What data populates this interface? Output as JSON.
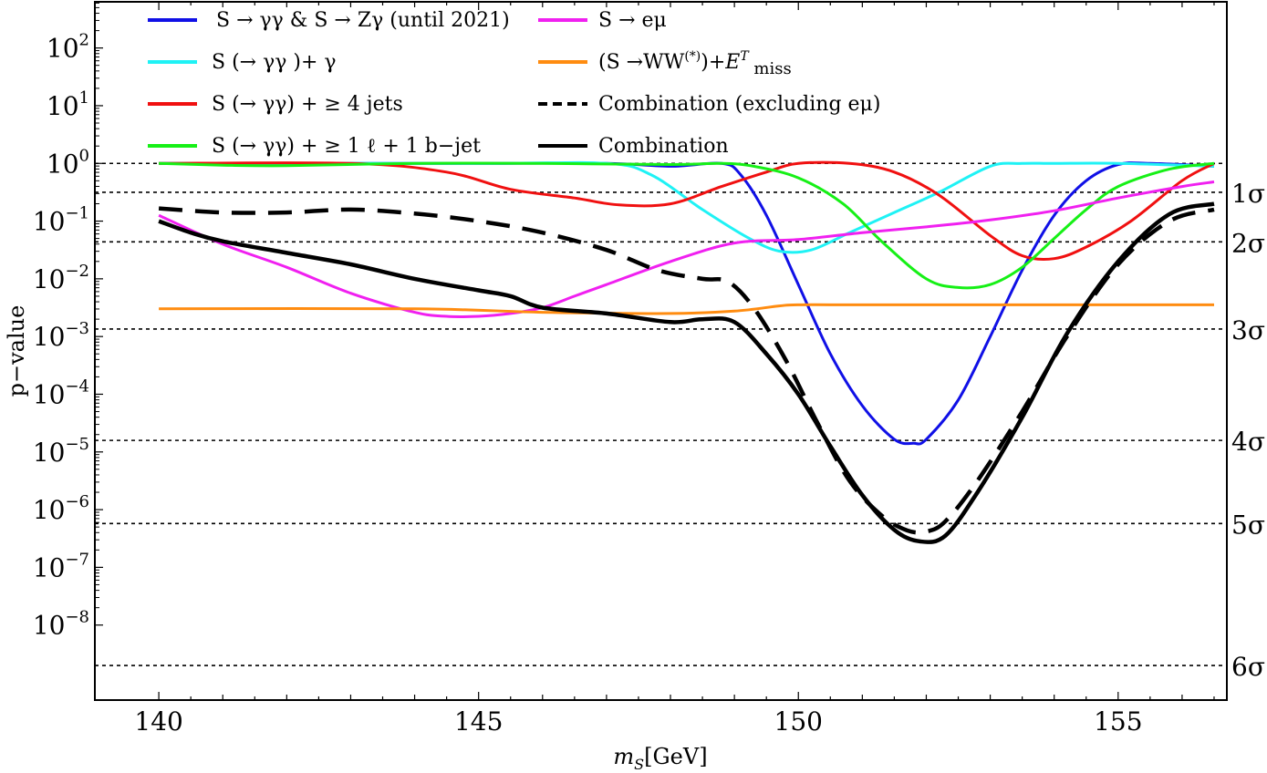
{
  "chart_data": {
    "type": "line",
    "xlabel": "mS[GeV]",
    "xlabel_main": "m",
    "xlabel_sub": "S",
    "xlabel_rest": "[GeV]",
    "ylabel": "p−value",
    "xlim": [
      139,
      156.7
    ],
    "x_ticks": [
      140,
      145,
      150,
      155
    ],
    "x_tick_labels": [
      "140",
      "145",
      "150",
      "155"
    ],
    "ylim_log10": [
      -9.3,
      2.8
    ],
    "y_tick_exponents": [
      2,
      1,
      0,
      -1,
      -2,
      -3,
      -4,
      -5,
      -6,
      -7,
      -8
    ],
    "y_tick_labels": [
      {
        "base": "10",
        "exp": "2"
      },
      {
        "base": "10",
        "exp": "1"
      },
      {
        "base": "10",
        "exp": "0"
      },
      {
        "base": "10",
        "exp": "−1"
      },
      {
        "base": "10",
        "exp": "−2"
      },
      {
        "base": "10",
        "exp": "−3"
      },
      {
        "base": "10",
        "exp": "−4"
      },
      {
        "base": "10",
        "exp": "−5"
      },
      {
        "base": "10",
        "exp": "−6"
      },
      {
        "base": "10",
        "exp": "−7"
      },
      {
        "base": "10",
        "exp": "−8"
      }
    ],
    "significance_lines": [
      {
        "label": "",
        "log10p": 0
      },
      {
        "label": "1σ",
        "log10p": -0.5
      },
      {
        "label": "2σ",
        "log10p": -1.36
      },
      {
        "label": "3σ",
        "log10p": -2.87
      },
      {
        "label": "4σ",
        "log10p": -4.8
      },
      {
        "label": "5σ",
        "log10p": -6.24
      },
      {
        "label": "6σ",
        "log10p": -8.7
      }
    ],
    "legend": [
      {
        "key": "blue",
        "label": "S → γγ & S → Zγ (until 2021)",
        "color": "#1010e6",
        "dash": "solid"
      },
      {
        "key": "cyan",
        "label": "S (→ γγ )+ γ",
        "color": "#1ff2f5",
        "dash": "solid"
      },
      {
        "key": "red",
        "label": "S (→ γγ) + ≥ 4 jets",
        "color": "#f01010",
        "dash": "solid"
      },
      {
        "key": "green",
        "label": "S (→ γγ) + ≥ 1 ℓ + 1 b−jet",
        "color": "#16f016",
        "dash": "solid"
      },
      {
        "key": "magenta",
        "label": "S → eμ",
        "color": "#f020f0",
        "dash": "solid"
      },
      {
        "key": "orange",
        "label": "(S →WW(*))+ETmiss",
        "color": "#ff8c10",
        "dash": "solid"
      },
      {
        "key": "black_dashed",
        "label": "Combination  (excluding eμ)",
        "color": "#000000",
        "dash": "dashed"
      },
      {
        "key": "black",
        "label": "Combination",
        "color": "#000000",
        "dash": "solid"
      }
    ],
    "series": [
      {
        "name": "S → γγ & S → Zγ (until 2021)",
        "color": "#1010e6",
        "width": 3,
        "dash": "",
        "x": [
          140,
          143,
          145,
          147,
          148,
          148.8,
          149.1,
          149.5,
          150,
          150.5,
          151,
          151.5,
          151.8,
          152,
          152.5,
          153,
          153.5,
          154,
          154.5,
          155,
          155.5,
          156.5
        ],
        "log10p": [
          0,
          0,
          0,
          0,
          -0.05,
          0,
          -0.2,
          -0.9,
          -2.1,
          -3.3,
          -4.2,
          -4.78,
          -4.85,
          -4.78,
          -4.1,
          -3.0,
          -1.85,
          -0.9,
          -0.3,
          -0.02,
          0,
          -0.05
        ]
      },
      {
        "name": "S (→ γγ )+ γ",
        "color": "#1ff2f5",
        "width": 3,
        "dash": "",
        "x": [
          140,
          145,
          147,
          147.7,
          148.5,
          149.2,
          149.7,
          150.2,
          150.8,
          151.5,
          152.2,
          153,
          153.5,
          154,
          155,
          156.5
        ],
        "log10p": [
          0,
          0,
          0,
          -0.2,
          -0.8,
          -1.28,
          -1.52,
          -1.5,
          -1.2,
          -0.85,
          -0.5,
          -0.05,
          0,
          0,
          0,
          -0.05
        ]
      },
      {
        "name": "S (→ γγ) + ≥ 4 jets",
        "color": "#f01010",
        "width": 3,
        "dash": "",
        "x": [
          140,
          143,
          144.5,
          145.5,
          146.5,
          147.2,
          148,
          148.8,
          149.5,
          150,
          150.8,
          151.5,
          152.2,
          153,
          153.5,
          154,
          154.5,
          155.2,
          156,
          156.5
        ],
        "log10p": [
          0,
          0,
          -0.15,
          -0.45,
          -0.6,
          -0.72,
          -0.7,
          -0.4,
          -0.15,
          0,
          0,
          -0.15,
          -0.55,
          -1.25,
          -1.6,
          -1.65,
          -1.45,
          -1.0,
          -0.3,
          0
        ]
      },
      {
        "name": "S (→ γγ) + ≥ 1 ℓ + 1 b−jet",
        "color": "#16f016",
        "width": 3,
        "dash": "",
        "x": [
          140,
          141,
          142,
          144,
          146,
          148,
          148.8,
          149.3,
          150,
          150.7,
          151.3,
          152,
          152.5,
          153,
          153.5,
          154,
          154.5,
          155,
          155.8,
          156.5
        ],
        "log10p": [
          0,
          -0.03,
          -0.04,
          0,
          0,
          -0.02,
          0,
          -0.05,
          -0.25,
          -0.7,
          -1.35,
          -2.0,
          -2.15,
          -2.1,
          -1.8,
          -1.3,
          -0.8,
          -0.4,
          -0.1,
          0
        ]
      },
      {
        "name": "S → eμ",
        "color": "#f020f0",
        "width": 3,
        "dash": "",
        "x": [
          140,
          141,
          142,
          143,
          144,
          144.5,
          145,
          145.5,
          146,
          146.5,
          147,
          148,
          149,
          150,
          151,
          152,
          153,
          154,
          155,
          156,
          156.5
        ],
        "log10p": [
          -0.9,
          -1.4,
          -1.8,
          -2.25,
          -2.58,
          -2.65,
          -2.65,
          -2.6,
          -2.5,
          -2.3,
          -2.1,
          -1.7,
          -1.38,
          -1.32,
          -1.2,
          -1.1,
          -0.98,
          -0.82,
          -0.6,
          -0.4,
          -0.32
        ]
      },
      {
        "name": "(S →WW(*))+ETmiss",
        "color": "#ff8c10",
        "width": 3,
        "dash": "",
        "x": [
          140,
          144,
          146,
          148,
          149,
          149.7,
          150,
          151,
          153,
          155,
          156.5
        ],
        "log10p": [
          -2.52,
          -2.52,
          -2.58,
          -2.6,
          -2.56,
          -2.47,
          -2.45,
          -2.45,
          -2.45,
          -2.45,
          -2.45
        ]
      },
      {
        "name": "Combination  (excluding eμ)",
        "color": "#000000",
        "width": 4.5,
        "dash": "26,14",
        "x": [
          140,
          141,
          142,
          143,
          144,
          145,
          146,
          147,
          147.8,
          148.5,
          148.9,
          149.3,
          149.8,
          150.3,
          150.8,
          151.3,
          151.7,
          152,
          152.3,
          152.8,
          153.5,
          154.2,
          155,
          155.8,
          156.5
        ],
        "log10p": [
          -0.78,
          -0.85,
          -0.85,
          -0.8,
          -0.87,
          -1.0,
          -1.2,
          -1.5,
          -1.85,
          -2.0,
          -2.05,
          -2.5,
          -3.4,
          -4.5,
          -5.5,
          -6.1,
          -6.36,
          -6.38,
          -6.2,
          -5.5,
          -4.3,
          -3.0,
          -1.75,
          -1.0,
          -0.8
        ]
      },
      {
        "name": "Combination",
        "color": "#000000",
        "width": 4.5,
        "dash": "",
        "x": [
          140,
          140.5,
          141,
          142,
          143,
          144,
          145,
          145.5,
          146,
          147,
          148,
          148.5,
          149,
          149.5,
          150,
          150.5,
          151,
          151.5,
          151.9,
          152.3,
          152.8,
          153.5,
          154.2,
          155,
          155.8,
          156.5
        ],
        "log10p": [
          -1.0,
          -1.2,
          -1.35,
          -1.55,
          -1.75,
          -2.0,
          -2.2,
          -2.3,
          -2.5,
          -2.6,
          -2.75,
          -2.7,
          -2.75,
          -3.3,
          -4.0,
          -4.9,
          -5.75,
          -6.35,
          -6.55,
          -6.45,
          -5.7,
          -4.4,
          -2.95,
          -1.7,
          -0.88,
          -0.7
        ]
      }
    ]
  }
}
